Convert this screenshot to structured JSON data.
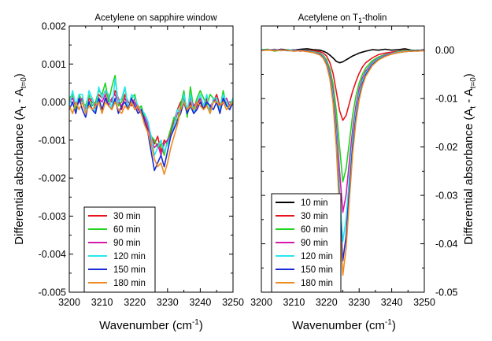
{
  "chart_data": [
    {
      "type": "line",
      "title": "Acetylene on sapphire window",
      "xlabel": "Wavenumber (cm",
      "xlabel_sup": "-1",
      "xlabel_end": ")",
      "ylabel": "Differential absorbance (A",
      "ylabel_sub1": "t",
      "ylabel_mid": " - A",
      "ylabel_sub2": "t=0",
      "ylabel_end": ")",
      "xlim": [
        3200,
        3250
      ],
      "ylim": [
        -0.005,
        0.002
      ],
      "xticks": [
        3200,
        3210,
        3220,
        3230,
        3240,
        3250
      ],
      "xtick_labels": [
        "3200",
        "3210",
        "3220",
        "3230",
        "3240",
        "3250"
      ],
      "yticks": [
        0.002,
        0.001,
        0.0,
        -0.001,
        -0.002,
        -0.003,
        -0.004,
        -0.005
      ],
      "ytick_labels": [
        "0.002",
        "0.001",
        "0.000",
        "-0.001",
        "-0.002",
        "-0.003",
        "-0.004",
        "-0.005"
      ],
      "legend_position": "bottom-left",
      "x": [
        3200,
        3201,
        3202,
        3203,
        3204,
        3205,
        3206,
        3207,
        3208,
        3209,
        3210,
        3211,
        3212,
        3213,
        3214,
        3215,
        3216,
        3217,
        3218,
        3219,
        3220,
        3221,
        3222,
        3223,
        3224,
        3225,
        3226,
        3227,
        3228,
        3229,
        3230,
        3231,
        3232,
        3233,
        3234,
        3235,
        3236,
        3237,
        3238,
        3239,
        3240,
        3241,
        3242,
        3243,
        3244,
        3245,
        3246,
        3247,
        3248,
        3249,
        3250
      ],
      "series": [
        {
          "name": "30 min",
          "color": "#e8141d",
          "values": [
            0.0,
            0.0002,
            -0.0001,
            0.0001,
            0.0,
            -0.0002,
            0.0001,
            0.0,
            -0.0001,
            0.0002,
            0.0001,
            0.0003,
            0.0001,
            0.0,
            0.0003,
            0.0001,
            -0.0002,
            0.0002,
            0.0,
            -0.0001,
            0.0001,
            -0.0001,
            -0.0002,
            -0.0005,
            -0.0007,
            -0.0009,
            -0.0011,
            -0.0009,
            -0.0013,
            -0.001,
            -0.0011,
            -0.0008,
            -0.0005,
            -0.0002,
            0.0,
            0.0001,
            -0.0003,
            0.0,
            -0.0003,
            -0.0001,
            0.0001,
            -0.0002,
            0.0001,
            -0.0002,
            0.0,
            0.0002,
            -0.0001,
            0.0001,
            0.0,
            -0.0002,
            0.0
          ]
        },
        {
          "name": "60 min",
          "color": "#1ed41e",
          "values": [
            0.0001,
            0.0002,
            -0.0002,
            0.0002,
            0.0,
            -0.0001,
            0.0002,
            -0.0001,
            0.0,
            0.0003,
            0.0002,
            0.0005,
            0.0,
            0.0004,
            0.0007,
            -0.0001,
            0.0,
            0.0004,
            -0.0002,
            0.0001,
            0.0002,
            -0.0002,
            -0.0001,
            -0.0004,
            -0.0006,
            -0.0009,
            -0.001,
            -0.0012,
            -0.0011,
            -0.0014,
            -0.001,
            -0.0007,
            -0.0004,
            -0.0005,
            -0.0001,
            0.0003,
            -0.0004,
            0.0004,
            -0.0002,
            0.0001,
            0.0003,
            0.0001,
            -0.0001,
            0.0002,
            0.0001,
            0.0,
            -0.0002,
            0.0003,
            -0.0001,
            -0.0001,
            0.0001
          ]
        },
        {
          "name": "90 min",
          "color": "#d41aa9",
          "values": [
            0.0,
            0.0001,
            -0.0001,
            0.0,
            0.0001,
            -0.0002,
            0.0,
            0.0001,
            -0.0002,
            0.0001,
            0.0,
            0.0002,
            -0.0001,
            0.0001,
            0.0002,
            0.0,
            -0.0001,
            0.0001,
            -0.0001,
            0.0,
            0.0,
            -0.0002,
            -0.0003,
            -0.0004,
            -0.0006,
            -0.001,
            -0.0012,
            -0.0011,
            -0.0014,
            -0.0011,
            -0.001,
            -0.0009,
            -0.0006,
            -0.0003,
            -0.0002,
            0.0,
            -0.0002,
            0.0001,
            -0.0001,
            0.0,
            0.0001,
            -0.0001,
            0.0,
            -0.0001,
            0.0,
            0.0001,
            -0.0002,
            0.0,
            0.0001,
            -0.0001,
            0.0
          ]
        },
        {
          "name": "120 min",
          "color": "#29e6f0",
          "values": [
            -0.0001,
            0.0003,
            -0.0001,
            0.0002,
            0.0002,
            -0.0003,
            0.0003,
            0.0001,
            -0.0003,
            0.0004,
            0.0001,
            0.0003,
            0.0002,
            -0.0002,
            0.0006,
            0.0,
            0.0001,
            0.0004,
            -0.0002,
            0.0002,
            0.0001,
            -0.0001,
            -0.0002,
            -0.0003,
            -0.0005,
            -0.0009,
            -0.0014,
            -0.0012,
            -0.001,
            -0.0013,
            -0.0011,
            -0.0009,
            -0.0006,
            -0.0002,
            -0.0003,
            0.0002,
            -0.0002,
            0.0002,
            -0.0003,
            0.0,
            0.0002,
            -0.0001,
            0.0002,
            -0.0003,
            0.0001,
            0.0001,
            -0.0002,
            0.0002,
            0.0,
            -0.0002,
            0.0001
          ]
        },
        {
          "name": "150 min",
          "color": "#1a2ad4",
          "values": [
            -0.0002,
            0.0,
            -0.0003,
            0.0001,
            -0.0002,
            -0.0004,
            0.0,
            -0.0002,
            -0.0003,
            0.0001,
            -0.0002,
            0.0001,
            -0.0001,
            -0.0002,
            0.0001,
            -0.0003,
            -0.0001,
            0.0,
            -0.0002,
            0.0001,
            -0.0001,
            -0.0003,
            -0.0002,
            -0.0005,
            -0.0008,
            -0.0013,
            -0.0018,
            -0.0016,
            -0.0014,
            -0.0017,
            -0.0013,
            -0.0009,
            -0.0007,
            -0.0005,
            -0.0003,
            0.0,
            -0.0003,
            -0.0001,
            -0.0003,
            -0.0002,
            0.0,
            -0.0002,
            0.0,
            -0.0001,
            -0.0002,
            0.0,
            -0.0003,
            0.0001,
            -0.0001,
            -0.0002,
            0.0
          ]
        },
        {
          "name": "180 min",
          "color": "#f08a1e",
          "values": [
            -0.0001,
            -0.0003,
            0.0,
            -0.0002,
            0.0,
            -0.0003,
            -0.0001,
            -0.0002,
            -0.0001,
            0.0,
            -0.0003,
            0.0,
            -0.0001,
            -0.0002,
            0.0,
            -0.0002,
            -0.0003,
            -0.0001,
            -0.0002,
            0.0,
            -0.0002,
            -0.0001,
            -0.0003,
            -0.0006,
            -0.0008,
            -0.0011,
            -0.0015,
            -0.0017,
            -0.0016,
            -0.0019,
            -0.0016,
            -0.0012,
            -0.0009,
            -0.0006,
            -0.0002,
            0.0,
            -0.0002,
            -0.0001,
            -0.0002,
            0.0,
            -0.0001,
            -0.0002,
            -0.0001,
            -0.0003,
            0.0,
            0.0,
            -0.0001,
            0.0,
            -0.0002,
            -0.0001,
            0.0
          ]
        }
      ]
    },
    {
      "type": "line",
      "title": "Acetylene on T",
      "title_sub": "1",
      "title_end": "-tholin",
      "xlabel": "Wavenumber (cm",
      "xlabel_sup": "-1",
      "xlabel_end": ")",
      "ylabel": "Differential absorbance (A",
      "ylabel_sub1": "t",
      "ylabel_mid": " - A",
      "ylabel_sub2": "t=0",
      "ylabel_end": ")",
      "xlim": [
        3200,
        3250
      ],
      "ylim": [
        -0.05,
        0.005
      ],
      "xticks": [
        3200,
        3210,
        3220,
        3230,
        3240,
        3250
      ],
      "xtick_labels": [
        "3200",
        "3210",
        "3220",
        "3230",
        "3240",
        "3250"
      ],
      "yticks": [
        0.0,
        -0.01,
        -0.02,
        -0.03,
        -0.04,
        -0.05
      ],
      "ytick_labels": [
        "0.00",
        "-0.01",
        "-0.02",
        "-0.03",
        "-0.04",
        "-0.05"
      ],
      "legend_position": "bottom-left",
      "x": [
        3200,
        3202,
        3204,
        3206,
        3208,
        3210,
        3212,
        3214,
        3216,
        3218,
        3219,
        3220,
        3221,
        3222,
        3223,
        3224,
        3225,
        3226,
        3227,
        3228,
        3229,
        3230,
        3231,
        3232,
        3234,
        3236,
        3238,
        3240,
        3242,
        3244,
        3246,
        3248,
        3250
      ],
      "series": [
        {
          "name": "10 min",
          "color": "#000000",
          "values": [
            0.0,
            0.0001,
            -0.0001,
            0.0002,
            0.0001,
            0.0,
            0.0002,
            0.0003,
            0.0001,
            0.0,
            -0.0002,
            -0.0005,
            -0.001,
            -0.0016,
            -0.0023,
            -0.0026,
            -0.0024,
            -0.002,
            -0.0016,
            -0.0012,
            -0.0009,
            -0.0006,
            -0.0004,
            -0.0002,
            0.0001,
            0.0,
            0.0002,
            0.0,
            0.0001,
            0.0003,
            0.0,
            -0.0001,
            0.0001
          ]
        },
        {
          "name": "30 min",
          "color": "#e8141d",
          "values": [
            0.0001,
            0.0,
            0.0002,
            -0.0001,
            0.0,
            0.0001,
            -0.0002,
            0.0,
            -0.0001,
            -0.0003,
            -0.0006,
            -0.0012,
            -0.0025,
            -0.0048,
            -0.0085,
            -0.0125,
            -0.0145,
            -0.0135,
            -0.011,
            -0.0085,
            -0.0065,
            -0.0048,
            -0.0035,
            -0.0026,
            -0.0016,
            -0.0009,
            -0.0006,
            -0.0004,
            -0.0002,
            0.0,
            -0.0002,
            0.0,
            -0.0001
          ]
        },
        {
          "name": "60 min",
          "color": "#1ed41e",
          "values": [
            0.0001,
            0.0002,
            -0.0002,
            0.0,
            0.0001,
            -0.0001,
            0.0,
            0.0,
            -0.0003,
            -0.0006,
            -0.0011,
            -0.002,
            -0.0038,
            -0.007,
            -0.0125,
            -0.02,
            -0.0272,
            -0.0245,
            -0.019,
            -0.0135,
            -0.0095,
            -0.0068,
            -0.005,
            -0.0037,
            -0.0022,
            -0.0014,
            -0.0009,
            -0.0006,
            -0.0003,
            -0.0001,
            -0.0002,
            0.0,
            -0.0001
          ]
        },
        {
          "name": "90 min",
          "color": "#d41aa9",
          "values": [
            0.0,
            0.0001,
            -0.0001,
            0.0001,
            0.0,
            -0.0002,
            0.0,
            -0.0001,
            -0.0004,
            -0.0007,
            -0.0013,
            -0.0024,
            -0.0045,
            -0.0085,
            -0.0155,
            -0.025,
            -0.0335,
            -0.03,
            -0.023,
            -0.0165,
            -0.0115,
            -0.008,
            -0.0058,
            -0.0043,
            -0.0026,
            -0.0016,
            -0.001,
            -0.0006,
            -0.0004,
            -0.0002,
            -0.0002,
            -0.0001,
            0.0
          ]
        },
        {
          "name": "120 min",
          "color": "#29e6f0",
          "values": [
            0.0001,
            0.0,
            0.0001,
            -0.0001,
            0.0001,
            0.0,
            -0.0001,
            -0.0002,
            -0.0004,
            -0.0008,
            -0.0014,
            -0.0026,
            -0.005,
            -0.0095,
            -0.0175,
            -0.029,
            -0.0395,
            -0.035,
            -0.0265,
            -0.0185,
            -0.0128,
            -0.009,
            -0.0064,
            -0.0047,
            -0.0028,
            -0.0017,
            -0.0011,
            -0.0007,
            -0.0004,
            -0.0002,
            -0.0001,
            -0.0002,
            0.0
          ]
        },
        {
          "name": "150 min",
          "color": "#1a2ad4",
          "values": [
            0.0,
            0.0,
            0.0,
            0.0001,
            -0.0001,
            -0.0001,
            0.0,
            -0.0002,
            -0.0005,
            -0.0009,
            -0.0016,
            -0.0029,
            -0.0055,
            -0.0105,
            -0.019,
            -0.0315,
            -0.0435,
            -0.0385,
            -0.029,
            -0.0202,
            -0.014,
            -0.0098,
            -0.007,
            -0.0051,
            -0.003,
            -0.0019,
            -0.0012,
            -0.0008,
            -0.0005,
            -0.0003,
            -0.0002,
            -0.0001,
            -0.0001
          ]
        },
        {
          "name": "180 min",
          "color": "#f08a1e",
          "values": [
            -0.0001,
            0.0,
            -0.0001,
            0.0,
            0.0,
            -0.0002,
            -0.0001,
            -0.0003,
            -0.0005,
            -0.001,
            -0.0017,
            -0.0031,
            -0.0058,
            -0.011,
            -0.02,
            -0.0335,
            -0.0465,
            -0.041,
            -0.031,
            -0.0215,
            -0.0148,
            -0.0103,
            -0.0074,
            -0.0054,
            -0.0032,
            -0.002,
            -0.0013,
            -0.0008,
            -0.0005,
            -0.0003,
            -0.0002,
            -0.0002,
            -0.0001
          ]
        }
      ]
    }
  ]
}
